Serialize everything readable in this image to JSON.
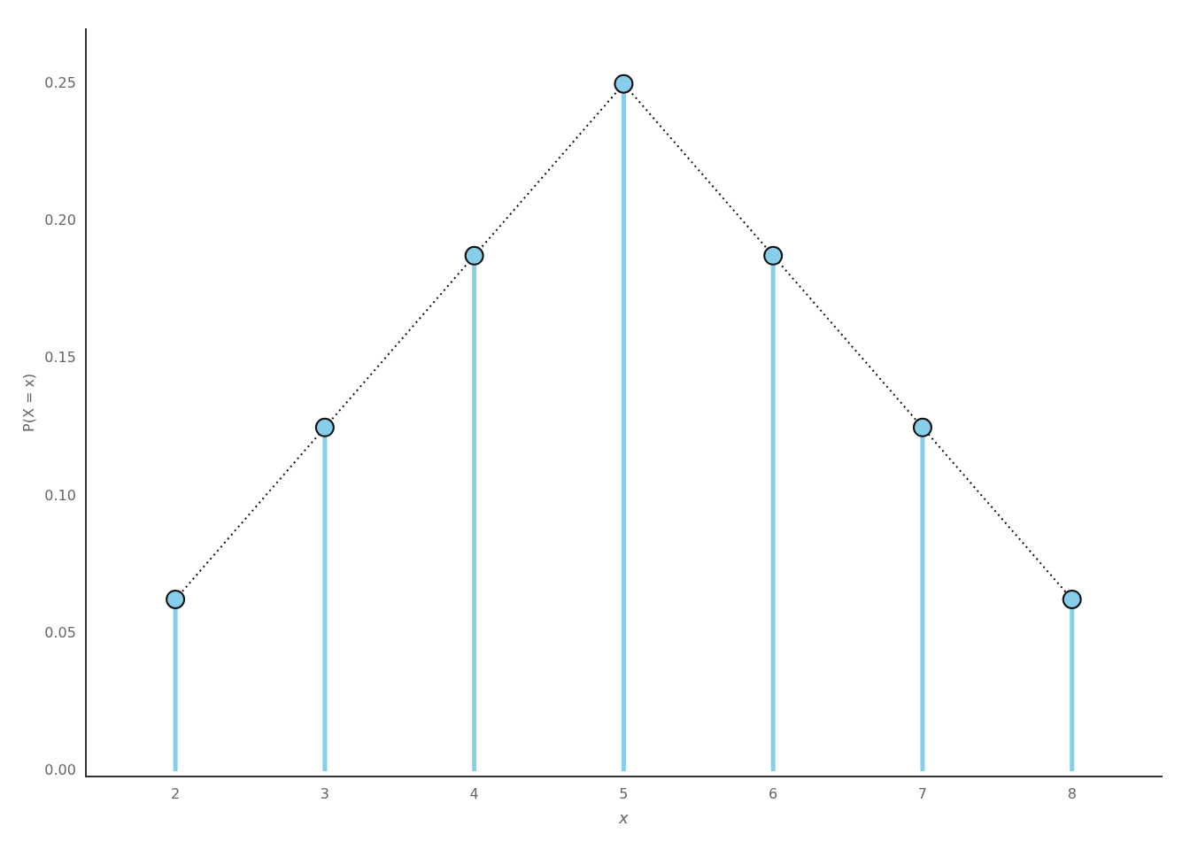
{
  "chart_data": {
    "type": "stem",
    "x": [
      2,
      3,
      4,
      5,
      6,
      7,
      8
    ],
    "values": [
      0.0625,
      0.125,
      0.1875,
      0.25,
      0.1875,
      0.125,
      0.0625
    ],
    "color": "#87CEEB",
    "marker": "circle",
    "line_style": "dotted",
    "xlabel": "x",
    "ylabel": "P(X = x)",
    "xlim": [
      1.4,
      8.6
    ],
    "ylim": [
      -0.002,
      0.27
    ],
    "xticks": [
      2,
      3,
      4,
      5,
      6,
      7,
      8
    ],
    "yticks": [
      {
        "value": 0.0,
        "label": "0.00"
      },
      0.05,
      {
        "value": 0.1,
        "label": "0.10"
      },
      0.15,
      {
        "value": 0.2,
        "label": "0.20"
      },
      0.25
    ],
    "grid": false
  }
}
